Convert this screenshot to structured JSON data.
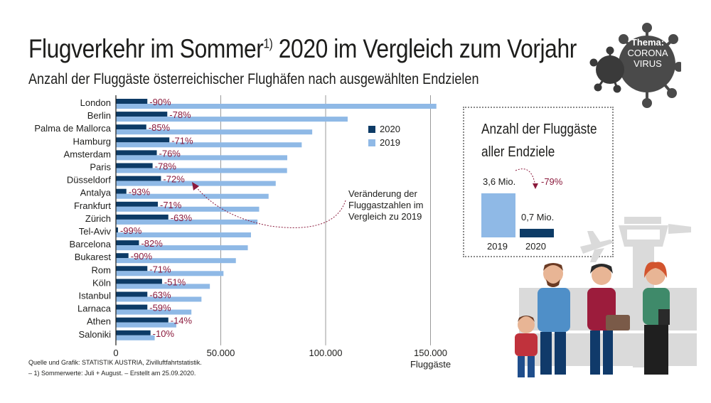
{
  "title": "Flugverkehr im Sommer",
  "title_sup": "1)",
  "title_rest": " 2020 im Vergleich zum Vorjahr",
  "subtitle": "Anzahl der Fluggäste österreichischer Flughäfen nach ausgewählten Endzielen",
  "legend": {
    "s2020": "2020",
    "s2019": "2019"
  },
  "annotation": "Veränderung der Fluggastzahlen im Vergleich zu 2019",
  "source_line1": "Quelle und Grafik: STATISTIK AUSTRIA, Zivilluftfahrtstatistik.",
  "source_line2": "– 1) Sommerwerte: Juli + August. – Erstellt am 25.09.2020.",
  "badge": {
    "line1": "Thema:",
    "line2": "CORONA",
    "line3": "VIRUS"
  },
  "summary": {
    "title_line1": "Anzahl der Fluggäste",
    "title_line2": "aller Endziele",
    "value_2019": "3,6 Mio.",
    "value_2020": "0,7 Mio.",
    "change": "-79%",
    "year_2019": "2019",
    "year_2020": "2020",
    "num_2019": 3.6,
    "num_2020": 0.7
  },
  "colors": {
    "c2020": "#0d3b66",
    "c2019": "#8fb9e6",
    "pct": "#8b1a3c",
    "grid": "#9a9a9a"
  },
  "chart_data": {
    "type": "bar",
    "orientation": "horizontal",
    "xlabel": "Fluggäste",
    "xlim": [
      0,
      155000
    ],
    "xticks": [
      0,
      50000,
      100000,
      150000
    ],
    "xtick_labels": [
      "0",
      "50.000",
      "100.000",
      "150.000"
    ],
    "categories": [
      "London",
      "Berlin",
      "Palma de Mallorca",
      "Hamburg",
      "Amsterdam",
      "Paris",
      "Düsseldorf",
      "Antalya",
      "Frankfurt",
      "Zürich",
      "Tel-Aviv",
      "Barcelona",
      "Bukarest",
      "Rom",
      "Köln",
      "Istanbul",
      "Larnaca",
      "Athen",
      "Saloniki"
    ],
    "series": [
      {
        "name": "2020",
        "values": [
          15000,
          24500,
          14500,
          25500,
          19500,
          17500,
          21500,
          5000,
          20000,
          25000,
          1000,
          11000,
          6000,
          15000,
          22000,
          15000,
          15000,
          25000,
          16500
        ]
      },
      {
        "name": "2019",
        "values": [
          152800,
          110500,
          93600,
          88600,
          81700,
          81600,
          76200,
          72800,
          68300,
          67500,
          64400,
          62900,
          57200,
          51300,
          44800,
          40800,
          36000,
          28800,
          18500
        ]
      }
    ],
    "data_labels": [
      "-90%",
      "-78%",
      "-85%",
      "-71%",
      "-76%",
      "-78%",
      "-72%",
      "-93%",
      "-71%",
      "-63%",
      "-99%",
      "-82%",
      "-90%",
      "-71%",
      "-51%",
      "-63%",
      "-59%",
      "-14%",
      "-10%"
    ]
  }
}
